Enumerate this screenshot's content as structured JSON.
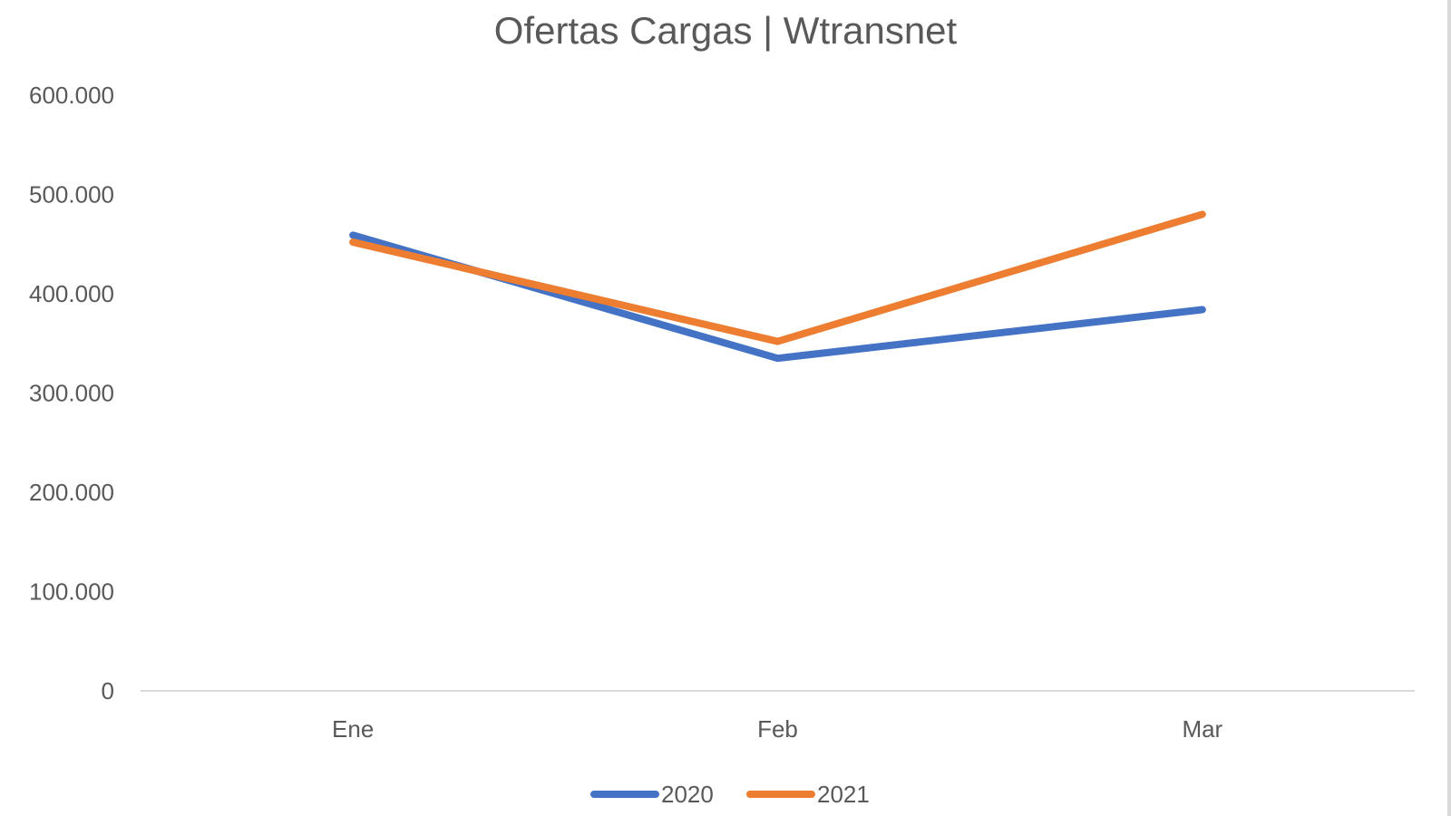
{
  "chart_data": {
    "type": "line",
    "title": "Ofertas Cargas | Wtransnet",
    "xlabel": "",
    "ylabel": "",
    "categories": [
      "Ene",
      "Feb",
      "Mar"
    ],
    "ylim": [
      0,
      600000
    ],
    "yticks": [
      0,
      100000,
      200000,
      300000,
      400000,
      500000,
      600000
    ],
    "ytick_labels": [
      "0",
      "100.000",
      "200.000",
      "300.000",
      "400.000",
      "500.000",
      "600.000"
    ],
    "grid": false,
    "legend_position": "bottom",
    "series": [
      {
        "name": "2020",
        "values": [
          459000,
          335000,
          384000
        ],
        "color": "#4472C4"
      },
      {
        "name": "2021",
        "values": [
          452000,
          352000,
          480000
        ],
        "color": "#ED7D31"
      }
    ],
    "axis_color": "#d9d9d9"
  }
}
